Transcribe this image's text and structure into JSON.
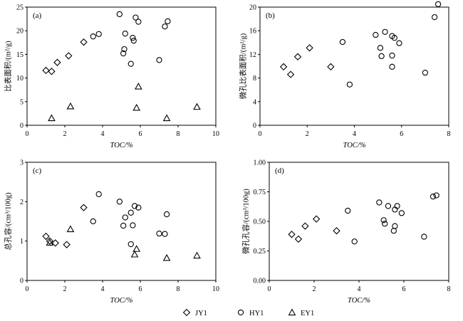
{
  "chart_data": [
    {
      "type": "scatter",
      "panel_label": "(a)",
      "xlabel": "TOC/%",
      "ylabel": "比表面积/(m²/g)",
      "xlim": [
        0,
        10
      ],
      "ylim": [
        0,
        25
      ],
      "x_ticks": [
        "0",
        "2",
        "4",
        "6",
        "8",
        "10"
      ],
      "y_ticks": [
        "0",
        "5",
        "10",
        "15",
        "20",
        "25"
      ],
      "series": [
        {
          "name": "JY1",
          "marker": "diamond",
          "points": [
            [
              1.0,
              11.6
            ],
            [
              1.3,
              11.4
            ],
            [
              1.6,
              13.3
            ],
            [
              2.2,
              14.7
            ],
            [
              3.0,
              17.6
            ]
          ]
        },
        {
          "name": "HY1",
          "marker": "circle",
          "points": [
            [
              3.5,
              18.8
            ],
            [
              3.8,
              19.3
            ],
            [
              4.9,
              23.5
            ],
            [
              5.1,
              15.2
            ],
            [
              5.15,
              16.1
            ],
            [
              5.2,
              19.4
            ],
            [
              5.5,
              13.0
            ],
            [
              5.6,
              18.5
            ],
            [
              5.65,
              17.9
            ],
            [
              5.75,
              22.8
            ],
            [
              5.9,
              21.9
            ],
            [
              7.0,
              13.8
            ],
            [
              7.3,
              20.9
            ],
            [
              7.45,
              22.0
            ]
          ]
        },
        {
          "name": "EY1",
          "marker": "triangle",
          "points": [
            [
              1.3,
              1.5
            ],
            [
              2.3,
              4.0
            ],
            [
              5.8,
              3.7
            ],
            [
              5.9,
              8.2
            ],
            [
              7.4,
              1.5
            ],
            [
              9.0,
              3.9
            ]
          ]
        }
      ]
    },
    {
      "type": "scatter",
      "panel_label": "(b)",
      "xlabel": "TOC/%",
      "ylabel": "微孔比表面积/(m²/g)",
      "xlim": [
        0,
        8
      ],
      "ylim": [
        0,
        20
      ],
      "x_ticks": [
        "0",
        "2",
        "4",
        "6",
        "8"
      ],
      "y_ticks": [
        "0",
        "4",
        "8",
        "12",
        "16",
        "20"
      ],
      "series": [
        {
          "name": "JY1",
          "marker": "diamond",
          "points": [
            [
              1.0,
              9.9
            ],
            [
              1.3,
              8.6
            ],
            [
              1.6,
              11.6
            ],
            [
              2.1,
              13.1
            ],
            [
              3.0,
              9.9
            ]
          ]
        },
        {
          "name": "HY1",
          "marker": "circle",
          "points": [
            [
              3.5,
              14.1
            ],
            [
              3.8,
              6.9
            ],
            [
              4.9,
              15.3
            ],
            [
              5.1,
              13.1
            ],
            [
              5.15,
              11.7
            ],
            [
              5.3,
              15.8
            ],
            [
              5.6,
              9.9
            ],
            [
              5.6,
              11.8
            ],
            [
              5.6,
              15.1
            ],
            [
              5.7,
              14.8
            ],
            [
              5.9,
              13.9
            ],
            [
              7.0,
              8.9
            ],
            [
              7.4,
              18.3
            ],
            [
              7.55,
              20.5
            ]
          ]
        }
      ]
    },
    {
      "type": "scatter",
      "panel_label": "(c)",
      "xlabel": "TOC/%",
      "ylabel": "总孔容/(cm³/100g)",
      "xlim": [
        0,
        10
      ],
      "ylim": [
        0,
        3
      ],
      "x_ticks": [
        "0",
        "2",
        "4",
        "6",
        "8",
        "10"
      ],
      "y_ticks": [
        "0",
        "1",
        "2",
        "3"
      ],
      "series": [
        {
          "name": "JY1",
          "marker": "diamond",
          "points": [
            [
              1.0,
              1.12
            ],
            [
              1.2,
              1.0
            ],
            [
              1.5,
              0.95
            ],
            [
              2.1,
              0.91
            ],
            [
              3.0,
              1.85
            ]
          ]
        },
        {
          "name": "HY1",
          "marker": "circle",
          "points": [
            [
              3.5,
              1.5
            ],
            [
              3.8,
              2.19
            ],
            [
              4.9,
              2.0
            ],
            [
              5.1,
              1.39
            ],
            [
              5.2,
              1.6
            ],
            [
              5.5,
              0.92
            ],
            [
              5.5,
              1.72
            ],
            [
              5.6,
              1.4
            ],
            [
              5.7,
              1.89
            ],
            [
              5.9,
              1.85
            ],
            [
              7.0,
              1.19
            ],
            [
              7.3,
              1.18
            ],
            [
              7.4,
              1.68
            ]
          ]
        },
        {
          "name": "EY1",
          "marker": "triangle",
          "points": [
            [
              1.2,
              0.96
            ],
            [
              2.3,
              1.3
            ],
            [
              5.7,
              0.66
            ],
            [
              5.8,
              0.8
            ],
            [
              7.4,
              0.57
            ],
            [
              9.0,
              0.63
            ]
          ]
        }
      ]
    },
    {
      "type": "scatter",
      "panel_label": "(d)",
      "xlabel": "TOC/%",
      "ylabel": "微孔孔容/(cm³/100g)",
      "xlim": [
        0,
        8
      ],
      "ylim": [
        0,
        1
      ],
      "x_ticks": [
        "0",
        "2",
        "4",
        "6",
        "8"
      ],
      "y_ticks": [
        "0.00",
        "0.25",
        "0.50",
        "0.75",
        "1.00"
      ],
      "series": [
        {
          "name": "JY1",
          "marker": "diamond",
          "points": [
            [
              1.0,
              0.39
            ],
            [
              1.3,
              0.35
            ],
            [
              1.6,
              0.46
            ],
            [
              2.1,
              0.52
            ],
            [
              3.0,
              0.42
            ]
          ]
        },
        {
          "name": "HY1",
          "marker": "circle",
          "points": [
            [
              3.5,
              0.59
            ],
            [
              3.8,
              0.33
            ],
            [
              4.9,
              0.66
            ],
            [
              5.1,
              0.51
            ],
            [
              5.15,
              0.48
            ],
            [
              5.3,
              0.63
            ],
            [
              5.55,
              0.42
            ],
            [
              5.6,
              0.46
            ],
            [
              5.6,
              0.6
            ],
            [
              5.7,
              0.63
            ],
            [
              5.9,
              0.57
            ],
            [
              6.9,
              0.37
            ],
            [
              7.3,
              0.71
            ],
            [
              7.45,
              0.72
            ]
          ]
        }
      ]
    }
  ],
  "legend": {
    "placement": "bottom-center",
    "items": [
      {
        "label": "JY1",
        "marker": "diamond"
      },
      {
        "label": "HY1",
        "marker": "circle"
      },
      {
        "label": "EY1",
        "marker": "triangle"
      }
    ]
  }
}
